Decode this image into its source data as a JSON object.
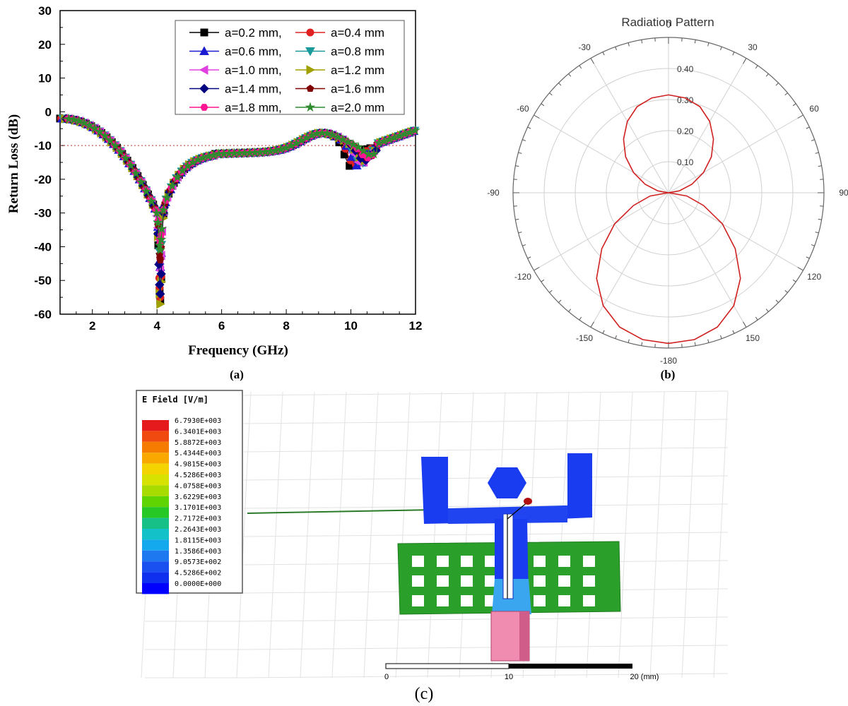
{
  "chart_data": [
    {
      "panel": "a",
      "type": "line",
      "title": "",
      "xlabel": "Frequency (GHz)",
      "ylabel": "Return Loss (dB)",
      "xlim": [
        1,
        12
      ],
      "ylim": [
        -60,
        30
      ],
      "xticks": [
        2,
        4,
        6,
        8,
        10,
        12
      ],
      "yticks": [
        30,
        20,
        10,
        0,
        -10,
        -20,
        -30,
        -40,
        -50,
        -60
      ],
      "grid": false,
      "legend_position": "top-right",
      "reference_line": {
        "y": -10,
        "style": "dotted",
        "color": "#c0392b"
      },
      "series": [
        {
          "name": "a=0.2 mm,",
          "color": "#000000",
          "marker": "square",
          "min_rl": -56,
          "notch2": -15,
          "notch2_f": 10.0
        },
        {
          "name": "a=0.4 mm",
          "color": "#e02020",
          "marker": "circle",
          "min_rl": -55,
          "notch2": -14,
          "notch2_f": 10.1
        },
        {
          "name": "a=0.6 mm,",
          "color": "#1a1ad0",
          "marker": "triangle-up",
          "min_rl": -46,
          "notch2": -14,
          "notch2_f": 10.2
        },
        {
          "name": "a=0.8 mm",
          "color": "#1a9a9a",
          "marker": "triangle-down",
          "min_rl": -43,
          "notch2": -13,
          "notch2_f": 10.3
        },
        {
          "name": "a=1.0 mm,",
          "color": "#e040e0",
          "marker": "triangle-left",
          "min_rl": -47,
          "notch2": -13,
          "notch2_f": 10.3
        },
        {
          "name": "a=1.2 mm",
          "color": "#a0a000",
          "marker": "triangle-right",
          "min_rl": -57,
          "notch2": -12,
          "notch2_f": 10.4
        },
        {
          "name": "a=1.4 mm,",
          "color": "#000080",
          "marker": "diamond",
          "min_rl": -54,
          "notch2": -12,
          "notch2_f": 10.4
        },
        {
          "name": "a=1.6 mm",
          "color": "#800000",
          "marker": "pentagon",
          "min_rl": -44,
          "notch2": -11,
          "notch2_f": 10.5
        },
        {
          "name": "a=1.8 mm,",
          "color": "#ff1493",
          "marker": "hexagon",
          "min_rl": -39,
          "notch2": -11,
          "notch2_f": 10.5
        },
        {
          "name": "a=2.0 mm",
          "color": "#2e8b2e",
          "marker": "star",
          "min_rl": -41,
          "notch2": -10,
          "notch2_f": 10.6
        }
      ],
      "caption": "(a)"
    },
    {
      "panel": "b",
      "type": "polar",
      "title": "Radiation Pattern",
      "angle_labels": [
        "0",
        "30",
        "60",
        "90",
        "120",
        "150",
        "-180",
        "-150",
        "-120",
        "-90",
        "-60",
        "-30"
      ],
      "radial_ticks": [
        0.1,
        0.2,
        0.3,
        0.4
      ],
      "radial_labels": [
        "0.10",
        "0.20",
        "0.30",
        "0.40"
      ],
      "rmax": 0.5,
      "series": [
        {
          "name": "",
          "color": "#d02020",
          "theta_deg": [
            0,
            10,
            20,
            30,
            40,
            50,
            60,
            70,
            80,
            90,
            100,
            110,
            120,
            130,
            140,
            150,
            160,
            170,
            180
          ],
          "r": [
            0.315,
            0.31,
            0.295,
            0.265,
            0.225,
            0.18,
            0.13,
            0.08,
            0.035,
            0.0,
            0.06,
            0.12,
            0.2,
            0.28,
            0.36,
            0.42,
            0.46,
            0.48,
            0.485
          ]
        }
      ],
      "caption": "(b)"
    },
    {
      "panel": "c",
      "type": "heatmap",
      "legend_title": "E Field [V/m]",
      "legend_values": [
        "6.7930E+003",
        "6.3401E+003",
        "5.8872E+003",
        "5.4344E+003",
        "4.9815E+003",
        "4.5286E+003",
        "4.0758E+003",
        "3.6229E+003",
        "3.1701E+003",
        "2.7172E+003",
        "2.2643E+003",
        "1.8115E+003",
        "1.3586E+003",
        "9.0573E+002",
        "4.5286E+002",
        "0.0000E+000"
      ],
      "legend_colors": [
        "#e41a1c",
        "#f04a10",
        "#f57c00",
        "#f9a800",
        "#f3d400",
        "#d7e200",
        "#a8dc00",
        "#5fd400",
        "#25c825",
        "#16c086",
        "#12c2c8",
        "#14a8ec",
        "#1e78f0",
        "#1a4ff0",
        "#1030f0",
        "#0000ff"
      ],
      "scale_labels": [
        "0",
        "10",
        "20 (mm)"
      ],
      "caption": "(c)"
    }
  ]
}
